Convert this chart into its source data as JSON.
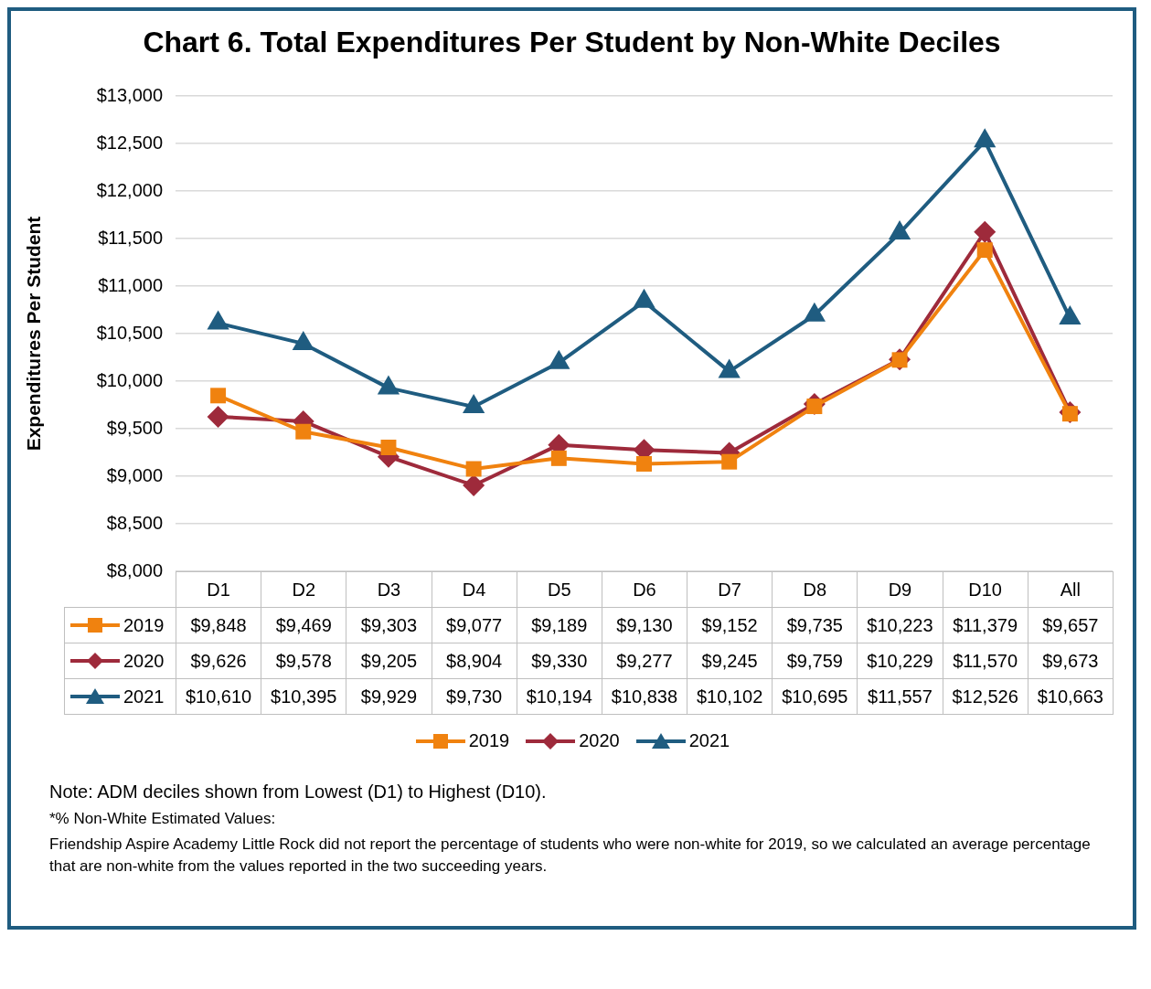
{
  "chart_data": {
    "type": "line",
    "title": "Chart 6. Total Expenditures Per Student by Non-White Deciles",
    "ylabel": "Expenditures Per Student",
    "categories": [
      "D1",
      "D2",
      "D3",
      "D4",
      "D5",
      "D6",
      "D7",
      "D8",
      "D9",
      "D10",
      "All"
    ],
    "series": [
      {
        "name": "2019",
        "color": "#f0820f",
        "marker": "square",
        "values": [
          9848,
          9469,
          9303,
          9077,
          9189,
          9130,
          9152,
          9735,
          10223,
          11379,
          9657
        ],
        "value_labels": [
          "$9,848",
          "$9,469",
          "$9,303",
          "$9,077",
          "$9,189",
          "$9,130",
          "$9,152",
          "$9,735",
          "$10,223",
          "$11,379",
          "$9,657"
        ]
      },
      {
        "name": "2020",
        "color": "#9e2a3b",
        "marker": "diamond",
        "values": [
          9626,
          9578,
          9205,
          8904,
          9330,
          9277,
          9245,
          9759,
          10229,
          11570,
          9673
        ],
        "value_labels": [
          "$9,626",
          "$9,578",
          "$9,205",
          "$8,904",
          "$9,330",
          "$9,277",
          "$9,245",
          "$9,759",
          "$10,229",
          "$11,570",
          "$9,673"
        ]
      },
      {
        "name": "2021",
        "color": "#1f5c80",
        "marker": "triangle",
        "values": [
          10610,
          10395,
          9929,
          9730,
          10194,
          10838,
          10102,
          10695,
          11557,
          12526,
          10663
        ],
        "value_labels": [
          "$10,610",
          "$10,395",
          "$9,929",
          "$9,730",
          "$10,194",
          "$10,838",
          "$10,102",
          "$10,695",
          "$11,557",
          "$12,526",
          "$10,663"
        ]
      }
    ],
    "ylim": [
      8000,
      13000
    ],
    "yticks": [
      {
        "value": 8000,
        "label": "$8,000"
      },
      {
        "value": 8500,
        "label": "$8,500"
      },
      {
        "value": 9000,
        "label": "$9,000"
      },
      {
        "value": 9500,
        "label": "$9,500"
      },
      {
        "value": 10000,
        "label": "$10,000"
      },
      {
        "value": 10500,
        "label": "$10,500"
      },
      {
        "value": 11000,
        "label": "$11,000"
      },
      {
        "value": 11500,
        "label": "$11,500"
      },
      {
        "value": 12000,
        "label": "$12,000"
      },
      {
        "value": 12500,
        "label": "$12,500"
      },
      {
        "value": 13000,
        "label": "$13,000"
      }
    ],
    "grid": "y",
    "legend": "bottom",
    "line_style": "solid",
    "annotations": [
      "Note:  ADM deciles shown from Lowest (D1) to Highest (D10).",
      "*% Non-White Estimated Values:",
      "Friendship Aspire Academy Little Rock did not report the percentage of students who were non-white for 2019, so we calculated an average percentage that are non-white from the values reported in the two succeeding years."
    ]
  }
}
